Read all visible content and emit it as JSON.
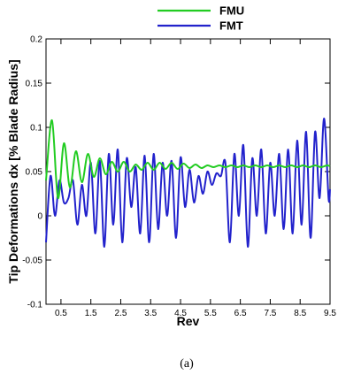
{
  "chart_data": {
    "type": "line",
    "title": "",
    "xlabel": "Rev",
    "ylabel": "Tip Deformations dx [% Blade Radius]",
    "caption": "(a)",
    "xlim": [
      0,
      9.5
    ],
    "ylim": [
      -0.1,
      0.2
    ],
    "xticks": [
      0.5,
      1.5,
      2.5,
      3.5,
      4.5,
      5.5,
      6.5,
      7.5,
      8.5,
      9.5
    ],
    "xtick_labels": [
      "0.5",
      "1.5",
      "2.5",
      "3.5",
      "4.5",
      "5.5",
      "6.5",
      "7.5",
      "8.5",
      "9.5"
    ],
    "yticks": [
      -0.1,
      -0.05,
      0,
      0.05,
      0.1,
      0.15,
      0.2
    ],
    "ytick_labels": [
      "-0.1",
      "-0.05",
      "0",
      "0.05",
      "0.1",
      "0.15",
      "0.2"
    ],
    "grid": false,
    "legend": "top-center",
    "series": [
      {
        "name": "FMU",
        "color": "#22cc22",
        "x": [
          0,
          0.2,
          0.4,
          0.6,
          0.8,
          1.0,
          1.2,
          1.4,
          1.6,
          1.8,
          2.0,
          2.2,
          2.4,
          2.6,
          2.8,
          3.0,
          3.2,
          3.4,
          3.6,
          3.8,
          4.0,
          4.2,
          4.4,
          4.6,
          4.8,
          5.0,
          5.2,
          5.4,
          5.6,
          5.8,
          6.0,
          6.2,
          6.4,
          6.6,
          6.8,
          7.0,
          7.2,
          7.4,
          7.6,
          7.8,
          8.0,
          8.2,
          8.4,
          8.6,
          8.8,
          9.0,
          9.2,
          9.4,
          9.5
        ],
        "y": [
          0.04,
          0.108,
          0.02,
          0.082,
          0.032,
          0.073,
          0.038,
          0.07,
          0.044,
          0.065,
          0.047,
          0.061,
          0.05,
          0.061,
          0.05,
          0.058,
          0.052,
          0.06,
          0.052,
          0.06,
          0.053,
          0.06,
          0.053,
          0.059,
          0.054,
          0.058,
          0.054,
          0.057,
          0.055,
          0.057,
          0.055,
          0.057,
          0.055,
          0.057,
          0.055,
          0.057,
          0.055,
          0.057,
          0.055,
          0.057,
          0.055,
          0.057,
          0.055,
          0.057,
          0.055,
          0.057,
          0.055,
          0.057,
          0.056
        ]
      },
      {
        "name": "FMT",
        "color": "#2222cc",
        "x": [
          0,
          0.15,
          0.3,
          0.45,
          0.6,
          0.75,
          0.9,
          1.05,
          1.2,
          1.35,
          1.5,
          1.65,
          1.8,
          1.95,
          2.1,
          2.25,
          2.4,
          2.55,
          2.7,
          2.85,
          3.0,
          3.15,
          3.3,
          3.45,
          3.6,
          3.75,
          3.9,
          4.05,
          4.2,
          4.35,
          4.5,
          4.65,
          4.8,
          4.95,
          5.1,
          5.25,
          5.4,
          5.55,
          5.7,
          5.85,
          6.0,
          6.15,
          6.3,
          6.45,
          6.6,
          6.75,
          6.9,
          7.05,
          7.2,
          7.35,
          7.5,
          7.65,
          7.8,
          7.95,
          8.1,
          8.25,
          8.4,
          8.55,
          8.7,
          8.85,
          9.0,
          9.15,
          9.3,
          9.45,
          9.5
        ],
        "y": [
          -0.03,
          0.045,
          0.0,
          0.04,
          0.015,
          0.02,
          0.04,
          -0.01,
          0.035,
          0.0,
          0.06,
          -0.02,
          0.062,
          -0.035,
          0.07,
          -0.01,
          0.075,
          -0.03,
          0.065,
          0.01,
          0.055,
          -0.02,
          0.068,
          -0.03,
          0.07,
          -0.015,
          0.06,
          0.0,
          0.062,
          -0.025,
          0.066,
          0.01,
          0.052,
          0.015,
          0.045,
          0.025,
          0.05,
          0.035,
          0.048,
          0.045,
          0.06,
          -0.03,
          0.07,
          0.0,
          0.08,
          -0.035,
          0.065,
          0.0,
          0.075,
          -0.02,
          0.06,
          0.0,
          0.07,
          -0.015,
          0.075,
          -0.02,
          0.085,
          -0.01,
          0.095,
          -0.025,
          0.095,
          0.02,
          0.11,
          0.02,
          0.03
        ]
      }
    ]
  }
}
